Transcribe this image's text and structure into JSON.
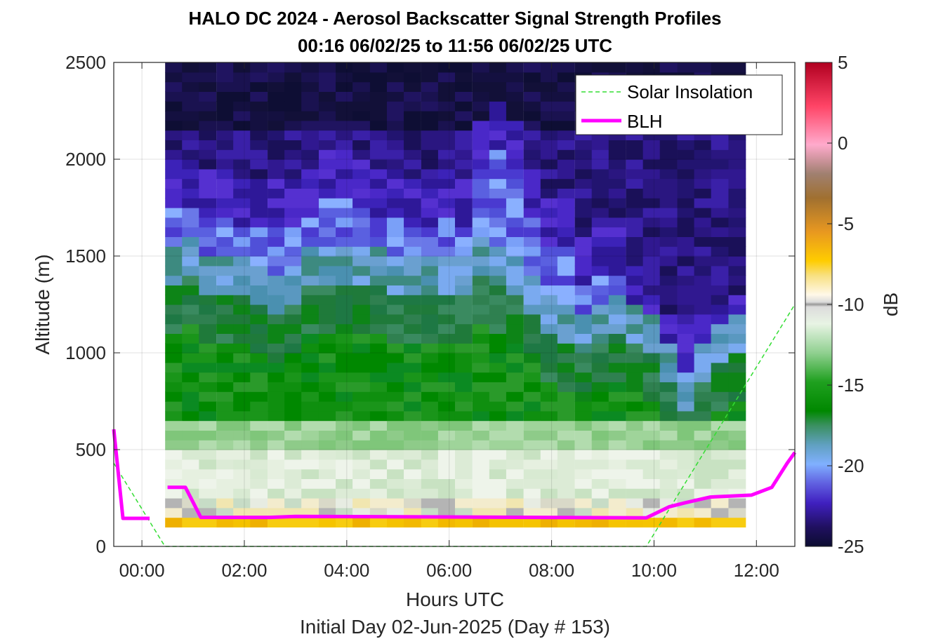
{
  "chart_data": {
    "type": "heatmap",
    "title": "HALO DC 2024 - Aerosol Backscatter Signal Strength Profiles",
    "subtitle": "00:16 06/02/25 to 11:56 06/02/25  UTC",
    "xlabel": "Hours UTC",
    "xlabel2": "Initial Day 02-Jun-2025 (Day # 153)",
    "ylabel": "Altitude (m)",
    "colorbar_label": "dB",
    "xlim_hours": [
      -0.55,
      12.75
    ],
    "ylim": [
      0,
      2500
    ],
    "x_ticks": [
      {
        "value": 0,
        "label": "00:00"
      },
      {
        "value": 2,
        "label": "02:00"
      },
      {
        "value": 4,
        "label": "04:00"
      },
      {
        "value": 6,
        "label": "06:00"
      },
      {
        "value": 8,
        "label": "08:00"
      },
      {
        "value": 10,
        "label": "10:00"
      },
      {
        "value": 12,
        "label": "12:00"
      }
    ],
    "y_ticks": [
      {
        "value": 0,
        "label": "0"
      },
      {
        "value": 500,
        "label": "500"
      },
      {
        "value": 1000,
        "label": "1000"
      },
      {
        "value": 1500,
        "label": "1500"
      },
      {
        "value": 2000,
        "label": "2000"
      },
      {
        "value": 2500,
        "label": "2500"
      }
    ],
    "color_limits": [
      -25,
      5
    ],
    "colorbar_ticks": [
      {
        "value": 5,
        "label": "5"
      },
      {
        "value": 0,
        "label": "0"
      },
      {
        "value": -5,
        "label": "-5"
      },
      {
        "value": -10,
        "label": "-10"
      },
      {
        "value": -15,
        "label": "-15"
      },
      {
        "value": -20,
        "label": "-20"
      },
      {
        "value": -25,
        "label": "-25"
      }
    ],
    "grid": true,
    "legend_position": "top-right",
    "colors": {
      "blh": "#ff00ff",
      "solar": "#33dd33"
    },
    "series": [
      {
        "name": "Solar Insolation",
        "style": "dashed",
        "x": [
          -0.55,
          0.45,
          9.85,
          12.75
        ],
        "y": [
          430,
          0,
          0,
          1250
        ]
      },
      {
        "name": "BLH",
        "style": "solid",
        "segments": [
          {
            "x": [
              -0.55,
              -0.37,
              0.15
            ],
            "y": [
              605,
              145,
              145
            ]
          },
          {
            "x": [
              0.5,
              0.85,
              1.15,
              2.5,
              3.0,
              9.85,
              10.3,
              10.6,
              11.1,
              11.9,
              12.3,
              12.6,
              12.75
            ],
            "y": [
              305,
              305,
              150,
              150,
              155,
              148,
              205,
              225,
              255,
              265,
              305,
              430,
              485
            ]
          }
        ]
      }
    ],
    "heatmap": {
      "x_start_hours": 0.45,
      "bin_width_hours": 0.333,
      "columns": 25,
      "y_start_m": 100,
      "bin_height_m": 50,
      "rows": 48,
      "profiles": [
        {
          "h": 0.62,
          "ml_top": 1350,
          "tr_top": 1750,
          "dip": 0
        },
        {
          "h": 0.95,
          "ml_top": 1380,
          "tr_top": 1750,
          "dip": 0
        },
        {
          "h": 1.28,
          "ml_top": 1320,
          "tr_top": 1720,
          "dip": 0
        },
        {
          "h": 1.62,
          "ml_top": 1300,
          "tr_top": 1700,
          "dip": 0
        },
        {
          "h": 1.95,
          "ml_top": 1280,
          "tr_top": 1660,
          "dip": 0
        },
        {
          "h": 2.28,
          "ml_top": 1250,
          "tr_top": 1650,
          "dip": 0
        },
        {
          "h": 2.62,
          "ml_top": 1200,
          "tr_top": 1650,
          "dip": 0
        },
        {
          "h": 2.95,
          "ml_top": 1250,
          "tr_top": 1650,
          "dip": 0
        },
        {
          "h": 3.28,
          "ml_top": 1350,
          "tr_top": 1700,
          "dip": 0
        },
        {
          "h": 3.62,
          "ml_top": 1350,
          "tr_top": 1800,
          "dip": 0
        },
        {
          "h": 3.95,
          "ml_top": 1350,
          "tr_top": 1800,
          "dip": 0
        },
        {
          "h": 4.28,
          "ml_top": 1350,
          "tr_top": 1750,
          "dip": 0
        },
        {
          "h": 4.62,
          "ml_top": 1350,
          "tr_top": 1700,
          "dip": 0
        },
        {
          "h": 4.95,
          "ml_top": 1300,
          "tr_top": 1700,
          "dip": 0
        },
        {
          "h": 5.28,
          "ml_top": 1300,
          "tr_top": 1650,
          "dip": 0
        },
        {
          "h": 5.62,
          "ml_top": 1300,
          "tr_top": 1650,
          "dip": 0
        },
        {
          "h": 5.95,
          "ml_top": 1300,
          "tr_top": 1700,
          "dip": 0
        },
        {
          "h": 6.28,
          "ml_top": 1300,
          "tr_top": 1650,
          "dip": 0
        },
        {
          "h": 6.62,
          "ml_top": 1400,
          "tr_top": 1950,
          "dip": 0
        },
        {
          "h": 6.95,
          "ml_top": 1350,
          "tr_top": 2050,
          "dip": 0
        },
        {
          "h": 7.28,
          "ml_top": 1300,
          "tr_top": 1950,
          "dip": 0
        },
        {
          "h": 7.62,
          "ml_top": 1200,
          "tr_top": 1700,
          "dip": 0
        },
        {
          "h": 7.95,
          "ml_top": 1100,
          "tr_top": 1550,
          "dip": 0
        },
        {
          "h": 8.28,
          "ml_top": 1050,
          "tr_top": 1550,
          "dip": 0
        },
        {
          "h": 8.62,
          "ml_top": 1000,
          "tr_top": 1350,
          "dip": 0
        }
      ]
    }
  },
  "legend": {
    "items": [
      {
        "label": "Solar Insolation"
      },
      {
        "label": "BLH"
      }
    ]
  }
}
